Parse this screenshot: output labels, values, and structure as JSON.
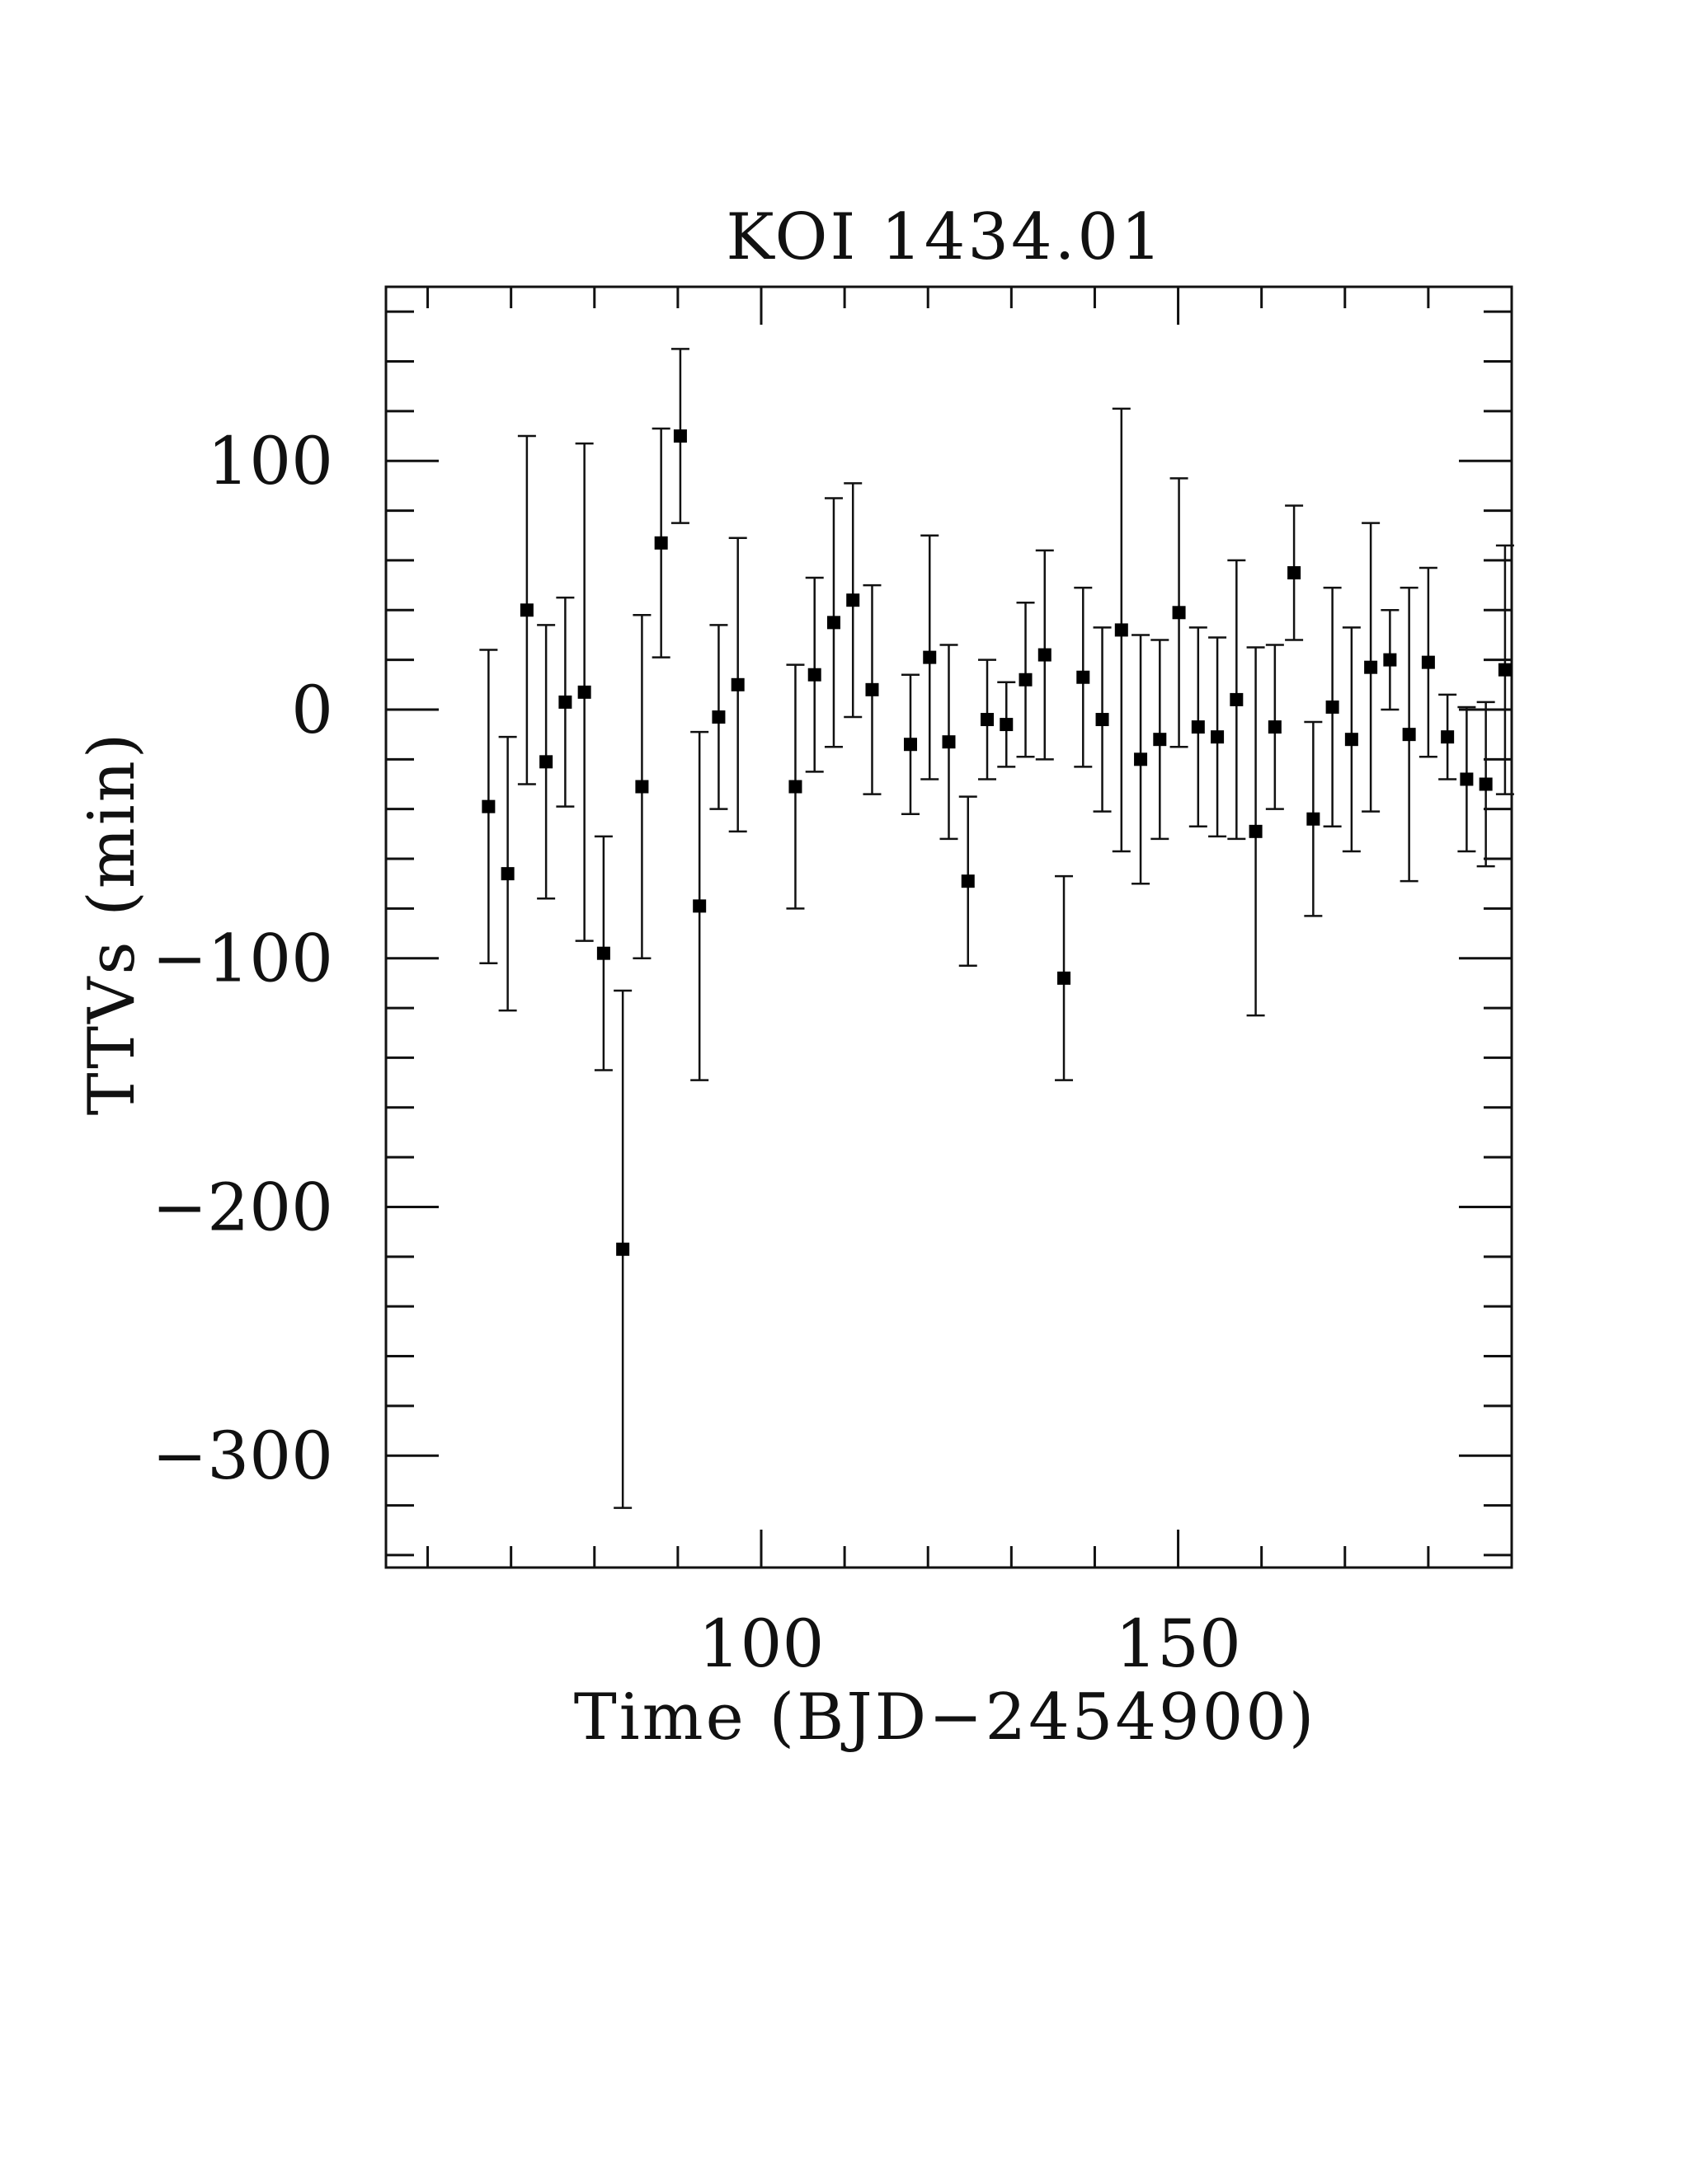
{
  "chart_data": {
    "type": "scatter",
    "title": "KOI 1434.01",
    "xlabel": "Time (BJD−2454900)",
    "ylabel": "TTVs (min)",
    "xlim": [
      55,
      190
    ],
    "ylim": [
      -345,
      170
    ],
    "xticks": [
      100,
      150
    ],
    "xtick_labels": [
      "100",
      "150"
    ],
    "yticks": [
      100,
      0,
      -100,
      -200,
      -300
    ],
    "ytick_labels": [
      "100",
      "0",
      "−100",
      "−200",
      "−300"
    ],
    "x_minor_step": 10,
    "y_minor_step": 20,
    "grid": false,
    "marker": "filled-square",
    "error_bars": true,
    "points": [
      {
        "x": 67.3,
        "y": -39,
        "err": 63
      },
      {
        "x": 69.6,
        "y": -66,
        "err": 55
      },
      {
        "x": 71.9,
        "y": 40,
        "err": 70
      },
      {
        "x": 74.2,
        "y": -21,
        "err": 55
      },
      {
        "x": 76.5,
        "y": 3,
        "err": 42
      },
      {
        "x": 78.8,
        "y": 7,
        "err": 100
      },
      {
        "x": 81.1,
        "y": -98,
        "err": 47
      },
      {
        "x": 83.4,
        "y": -217,
        "err": 104
      },
      {
        "x": 85.7,
        "y": -31,
        "err": 69
      },
      {
        "x": 88.0,
        "y": 67,
        "err": 46
      },
      {
        "x": 90.3,
        "y": 110,
        "err": 35
      },
      {
        "x": 92.6,
        "y": -79,
        "err": 70
      },
      {
        "x": 94.9,
        "y": -3,
        "err": 37
      },
      {
        "x": 97.2,
        "y": 10,
        "err": 59
      },
      {
        "x": 104.1,
        "y": -31,
        "err": 49
      },
      {
        "x": 106.4,
        "y": 14,
        "err": 39
      },
      {
        "x": 108.7,
        "y": 35,
        "err": 50
      },
      {
        "x": 111.0,
        "y": 44,
        "err": 47
      },
      {
        "x": 113.3,
        "y": 8,
        "err": 42
      },
      {
        "x": 117.9,
        "y": -14,
        "err": 28
      },
      {
        "x": 120.2,
        "y": 21,
        "err": 49
      },
      {
        "x": 122.5,
        "y": -13,
        "err": 39
      },
      {
        "x": 124.8,
        "y": -69,
        "err": 34
      },
      {
        "x": 127.1,
        "y": -4,
        "err": 24
      },
      {
        "x": 129.4,
        "y": -6,
        "err": 17
      },
      {
        "x": 131.7,
        "y": 12,
        "err": 31
      },
      {
        "x": 134.0,
        "y": 22,
        "err": 42
      },
      {
        "x": 136.3,
        "y": -108,
        "err": 41
      },
      {
        "x": 138.6,
        "y": 13,
        "err": 36
      },
      {
        "x": 140.9,
        "y": -4,
        "err": 37
      },
      {
        "x": 143.2,
        "y": 32,
        "err": 89
      },
      {
        "x": 145.5,
        "y": -20,
        "err": 50
      },
      {
        "x": 147.8,
        "y": -12,
        "err": 40
      },
      {
        "x": 150.1,
        "y": 39,
        "err": 54
      },
      {
        "x": 152.4,
        "y": -7,
        "err": 40
      },
      {
        "x": 154.7,
        "y": -11,
        "err": 40
      },
      {
        "x": 157.0,
        "y": 4,
        "err": 56
      },
      {
        "x": 159.3,
        "y": -49,
        "err": 74
      },
      {
        "x": 161.6,
        "y": -7,
        "err": 33
      },
      {
        "x": 163.9,
        "y": 55,
        "err": 27
      },
      {
        "x": 166.2,
        "y": -44,
        "err": 39
      },
      {
        "x": 168.5,
        "y": 1,
        "err": 48
      },
      {
        "x": 170.8,
        "y": -12,
        "err": 45
      },
      {
        "x": 173.1,
        "y": 17,
        "err": 58
      },
      {
        "x": 175.4,
        "y": 20,
        "err": 20
      },
      {
        "x": 177.7,
        "y": -10,
        "err": 59
      },
      {
        "x": 180.0,
        "y": 19,
        "err": 38
      },
      {
        "x": 182.3,
        "y": -11,
        "err": 17
      },
      {
        "x": 184.6,
        "y": -28,
        "err": 29
      },
      {
        "x": 186.9,
        "y": -30,
        "err": 33
      },
      {
        "x": 189.2,
        "y": 16,
        "err": 50
      }
    ]
  }
}
